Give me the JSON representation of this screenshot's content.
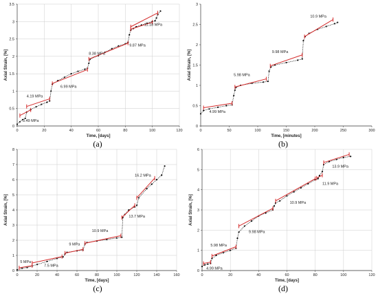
{
  "chart_data": [
    {
      "type": "scatter",
      "panel": "(a)",
      "xlabel": "Time, [days]",
      "ylabel": "Axial Strain, [%]",
      "xlim": [
        0,
        120
      ],
      "ylim": [
        0,
        3.5
      ],
      "xticks": [
        0,
        20,
        40,
        60,
        80,
        100,
        120
      ],
      "yticks": [
        0,
        0.5,
        1,
        1.5,
        2,
        2.5,
        3,
        3.5
      ],
      "grid": true,
      "x": [
        0,
        2,
        4,
        6,
        7,
        10,
        14,
        18,
        22,
        24,
        25,
        26,
        30,
        35,
        40,
        45,
        50,
        52,
        53,
        54,
        60,
        65,
        70,
        75,
        80,
        82,
        83,
        84,
        86,
        88,
        92,
        96,
        100,
        102,
        103,
        104,
        106
      ],
      "y": [
        0.05,
        0.12,
        0.18,
        0.22,
        0.4,
        0.47,
        0.55,
        0.62,
        0.68,
        0.72,
        1.0,
        1.2,
        1.3,
        1.4,
        1.5,
        1.57,
        1.63,
        1.66,
        1.8,
        1.92,
        2.02,
        2.12,
        2.22,
        2.3,
        2.36,
        2.4,
        2.62,
        2.75,
        2.8,
        2.85,
        2.9,
        2.95,
        3.0,
        3.02,
        3.1,
        3.2,
        3.3
      ],
      "trend_lines": [
        {
          "x": [
            2,
            10
          ],
          "y": [
            0.3,
            0.46
          ]
        },
        {
          "x": [
            7,
            24
          ],
          "y": [
            0.56,
            0.78
          ]
        },
        {
          "x": [
            26,
            52
          ],
          "y": [
            1.22,
            1.62
          ]
        },
        {
          "x": [
            53,
            82
          ],
          "y": [
            1.92,
            2.38
          ]
        },
        {
          "x": [
            84,
            100
          ],
          "y": [
            2.78,
            2.98
          ]
        },
        {
          "x": [
            84,
            104
          ],
          "y": [
            2.85,
            3.25
          ]
        }
      ],
      "stage_labels": [
        {
          "text": "3.49 MPa",
          "x": 4,
          "y": 0.12
        },
        {
          "text": "4.19 MPa",
          "x": 7,
          "y": 0.82
        },
        {
          "text": "6.99 MPa",
          "x": 32,
          "y": 1.1
        },
        {
          "text": "8.38 MPa",
          "x": 53,
          "y": 2.05
        },
        {
          "text": "9.87 MPa",
          "x": 83,
          "y": 2.28
        },
        {
          "text": "11.18 MPa",
          "x": 94,
          "y": 2.88
        }
      ]
    },
    {
      "type": "scatter",
      "panel": "(b)",
      "xlabel": "Time, [minutes]",
      "ylabel": "Axial Strain, [%]",
      "xlim": [
        0,
        300
      ],
      "ylim": [
        0,
        3
      ],
      "xticks": [
        0,
        50,
        100,
        150,
        200,
        250,
        300
      ],
      "yticks": [
        0,
        0.5,
        1,
        1.5,
        2,
        2.5,
        3
      ],
      "grid": false,
      "x": [
        0,
        5,
        15,
        30,
        45,
        55,
        58,
        60,
        62,
        70,
        90,
        110,
        118,
        120,
        123,
        130,
        150,
        170,
        178,
        180,
        183,
        190,
        205,
        220,
        235,
        240
      ],
      "y": [
        0.3,
        0.38,
        0.42,
        0.46,
        0.5,
        0.52,
        0.75,
        0.88,
        0.95,
        1.0,
        1.05,
        1.08,
        1.1,
        1.35,
        1.45,
        1.5,
        1.56,
        1.62,
        1.65,
        2.1,
        2.2,
        2.28,
        2.38,
        2.45,
        2.52,
        2.55
      ],
      "trend_lines": [
        {
          "x": [
            5,
            55
          ],
          "y": [
            0.45,
            0.56
          ]
        },
        {
          "x": [
            60,
            115
          ],
          "y": [
            0.96,
            1.16
          ]
        },
        {
          "x": [
            122,
            178
          ],
          "y": [
            1.48,
            1.75
          ]
        },
        {
          "x": [
            182,
            232
          ],
          "y": [
            2.2,
            2.62
          ]
        }
      ],
      "stage_labels": [
        {
          "text": "4.99 MPa",
          "x": 15,
          "y": 0.32
        },
        {
          "text": "5.98 MPa",
          "x": 58,
          "y": 1.23
        },
        {
          "text": "9.98 MPa",
          "x": 125,
          "y": 1.8
        },
        {
          "text": "10.9 MPa",
          "x": 192,
          "y": 2.67
        }
      ]
    },
    {
      "type": "scatter",
      "panel": "(c)",
      "xlabel": "Time, [days]",
      "ylabel": "Axial Strain, [%]",
      "xlim": [
        0,
        160
      ],
      "ylim": [
        0,
        8
      ],
      "xticks": [
        0,
        20,
        40,
        60,
        80,
        100,
        120,
        140,
        160
      ],
      "yticks": [
        0,
        1,
        2,
        3,
        4,
        5,
        6,
        7,
        8
      ],
      "grid": true,
      "x": [
        0,
        5,
        10,
        15,
        20,
        30,
        40,
        46,
        48,
        50,
        60,
        66,
        68,
        70,
        80,
        90,
        100,
        105,
        106,
        108,
        112,
        118,
        120,
        122,
        130,
        135,
        140,
        145,
        148
      ],
      "y": [
        0.05,
        0.15,
        0.2,
        0.3,
        0.4,
        0.6,
        0.8,
        0.9,
        1.1,
        1.2,
        1.3,
        1.35,
        1.75,
        1.85,
        1.95,
        2.05,
        2.15,
        2.2,
        3.5,
        3.7,
        4.0,
        4.2,
        4.3,
        4.8,
        5.4,
        5.7,
        6.0,
        6.3,
        6.9
      ],
      "trend_lines": [
        {
          "x": [
            2,
            15
          ],
          "y": [
            0.18,
            0.32
          ]
        },
        {
          "x": [
            15,
            45
          ],
          "y": [
            0.5,
            0.92
          ]
        },
        {
          "x": [
            48,
            66
          ],
          "y": [
            1.15,
            1.4
          ]
        },
        {
          "x": [
            68,
            104
          ],
          "y": [
            1.8,
            2.3
          ]
        },
        {
          "x": [
            105,
            118
          ],
          "y": [
            3.5,
            4.3
          ]
        },
        {
          "x": [
            120,
            138
          ],
          "y": [
            4.8,
            6.1
          ]
        }
      ],
      "stage_labels": [
        {
          "text": "5 MPa",
          "x": 3,
          "y": 0.5
        },
        {
          "text": "7.5 MPa",
          "x": 27,
          "y": 0.25
        },
        {
          "text": "9 MPa",
          "x": 52,
          "y": 1.65
        },
        {
          "text": "10.9 MPa",
          "x": 75,
          "y": 2.55
        },
        {
          "text": "13.7 MPa",
          "x": 112,
          "y": 3.5
        },
        {
          "text": "16.2 MPa",
          "x": 118,
          "y": 6.2
        }
      ]
    },
    {
      "type": "scatter",
      "panel": "(d)",
      "xlabel": "Time, [days]",
      "ylabel": "Axial Strain, [%]",
      "xlim": [
        0,
        120
      ],
      "ylim": [
        0,
        6
      ],
      "xticks": [
        0,
        20,
        40,
        60,
        80,
        100,
        120
      ],
      "yticks": [
        0,
        1,
        2,
        3,
        4,
        5,
        6
      ],
      "grid": true,
      "x": [
        0,
        2,
        4,
        6,
        7,
        10,
        15,
        20,
        24,
        25,
        26,
        30,
        35,
        40,
        45,
        50,
        51,
        52,
        55,
        60,
        65,
        70,
        75,
        80,
        82,
        83,
        85,
        86,
        90,
        95,
        100,
        105
      ],
      "y": [
        0.2,
        0.28,
        0.32,
        0.35,
        0.6,
        0.75,
        0.88,
        1.0,
        1.1,
        1.6,
        1.9,
        2.2,
        2.45,
        2.7,
        2.85,
        3.0,
        3.2,
        3.35,
        3.45,
        3.7,
        3.9,
        4.1,
        4.3,
        4.5,
        4.55,
        4.7,
        4.9,
        5.25,
        5.4,
        5.5,
        5.6,
        5.65
      ],
      "trend_lines": [
        {
          "x": [
            1,
            6
          ],
          "y": [
            0.35,
            0.42
          ]
        },
        {
          "x": [
            7,
            24
          ],
          "y": [
            0.72,
            1.18
          ]
        },
        {
          "x": [
            26,
            50
          ],
          "y": [
            2.2,
            3.08
          ]
        },
        {
          "x": [
            52,
            80
          ],
          "y": [
            3.45,
            4.55
          ]
        },
        {
          "x": [
            81,
            85
          ],
          "y": [
            4.58,
            4.72
          ]
        },
        {
          "x": [
            86,
            104
          ],
          "y": [
            5.35,
            5.75
          ]
        }
      ],
      "stage_labels": [
        {
          "text": "4.99 MPa",
          "x": 3,
          "y": 0.05
        },
        {
          "text": "5.98 MPa",
          "x": 6,
          "y": 1.2
        },
        {
          "text": "9.98 MPa",
          "x": 33,
          "y": 1.85
        },
        {
          "text": "10.9 MPa",
          "x": 62,
          "y": 3.3
        },
        {
          "text": "11.9 MPa",
          "x": 85,
          "y": 4.25
        },
        {
          "text": "13.9 MPa",
          "x": 92,
          "y": 5.1
        }
      ]
    }
  ],
  "colors": {
    "data": "#111111",
    "fit": "#d42a2a",
    "grid": "#cccccc",
    "axis": "#333333"
  }
}
